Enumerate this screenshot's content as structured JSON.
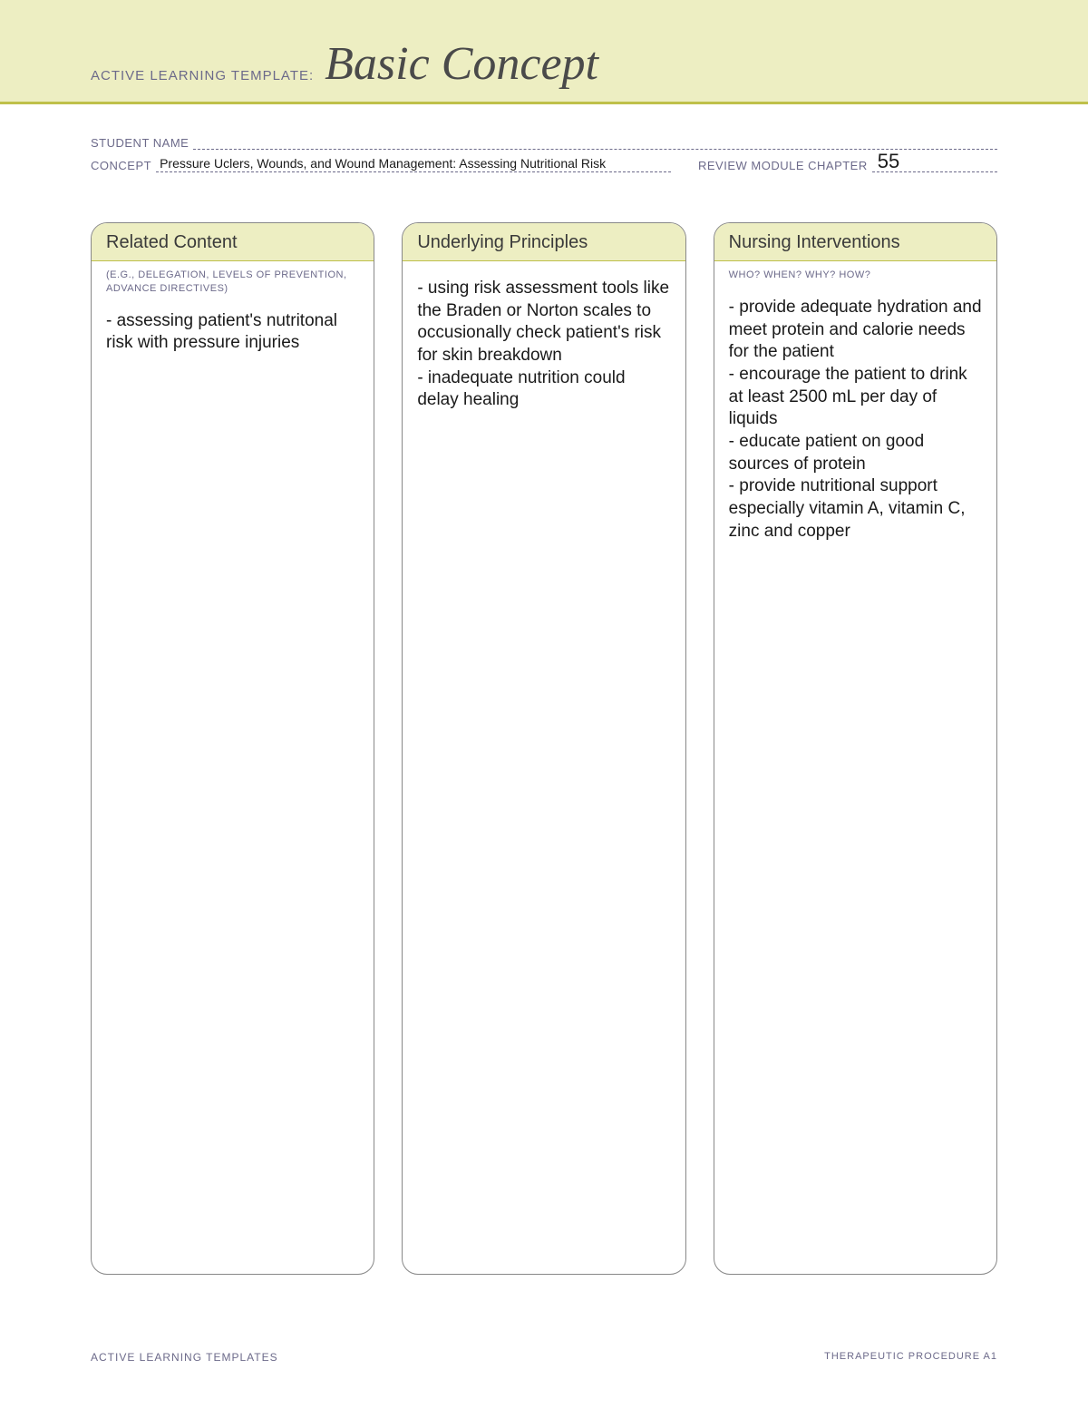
{
  "header": {
    "prefix": "ACTIVE LEARNING TEMPLATE:",
    "title": "Basic Concept"
  },
  "meta": {
    "student_label": "STUDENT NAME",
    "student_value": "",
    "concept_label": "CONCEPT",
    "concept_value": "Pressure Uclers, Wounds, and Wound Management: Assessing Nutritional Risk",
    "chapter_label": "REVIEW MODULE CHAPTER",
    "chapter_value": "55"
  },
  "columns": [
    {
      "title": "Related Content",
      "sub": "(E.G., DELEGATION,\nLEVELS OF PREVENTION,\nADVANCE DIRECTIVES)",
      "body": "- assessing patient's nutritonal risk with pressure injuries"
    },
    {
      "title": "Underlying Principles",
      "sub": "",
      "body": "- using risk assessment tools like the Braden or Norton scales to occusionally check patient's risk for skin breakdown\n- inadequate nutrition could delay healing"
    },
    {
      "title": "Nursing Interventions",
      "sub": "WHO? WHEN? WHY? HOW?",
      "body": "- provide adequate hydration and meet protein and calorie needs for the patient\n- encourage the patient to drink at least 2500 mL per day of liquids\n- educate patient on good sources of protein\n- provide nutritional support especially vitamin A, vitamin C, zinc and copper"
    }
  ],
  "footer": {
    "left": "ACTIVE LEARNING TEMPLATES",
    "right": "THERAPEUTIC PROCEDURE   A1"
  },
  "colors": {
    "band_bg": "#edeec2",
    "accent": "#bfc04a",
    "label": "#6c6a8a",
    "text": "#1a1a1a",
    "border": "#888888"
  }
}
